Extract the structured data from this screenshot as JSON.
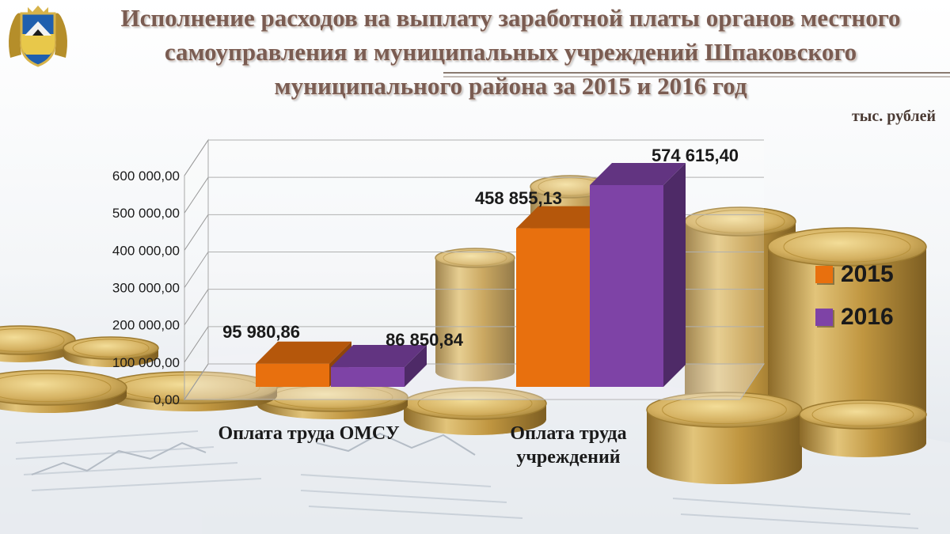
{
  "header": {
    "title_line1": "Исполнение расходов на выплату заработной платы органов местного",
    "title_line2": "самоуправления и муниципальных учреждений Шпаковского",
    "title_line3": "муниципального района за 2015 и 2016 год",
    "units": "тыс. рублей",
    "emblem_icon": "coat-of-arms-icon"
  },
  "colors": {
    "series_2015": "#e8700e",
    "series_2016": "#7e43a6",
    "title": "#7a5c52",
    "gold": "#c9a24a"
  },
  "chart_data": {
    "type": "bar",
    "style": "3d-clustered",
    "categories": [
      "Оплата труда ОМСУ",
      "Оплата труда учреждений"
    ],
    "series": [
      {
        "name": "2015",
        "values": [
          95980.86,
          458855.13
        ],
        "labels": [
          "95 980,86",
          "458 855,13"
        ]
      },
      {
        "name": "2016",
        "values": [
          86850.84,
          574615.4
        ],
        "labels": [
          "86 850,84",
          "574 615,40"
        ]
      }
    ],
    "ylim": [
      0,
      600000
    ],
    "yticks": [
      0,
      100000,
      200000,
      300000,
      400000,
      500000,
      600000
    ],
    "ytick_labels": [
      "0,00",
      "100 000,00",
      "200 000,00",
      "300 000,00",
      "400 000,00",
      "500 000,00",
      "600 000,00"
    ],
    "grid": true,
    "legend_position": "right"
  }
}
